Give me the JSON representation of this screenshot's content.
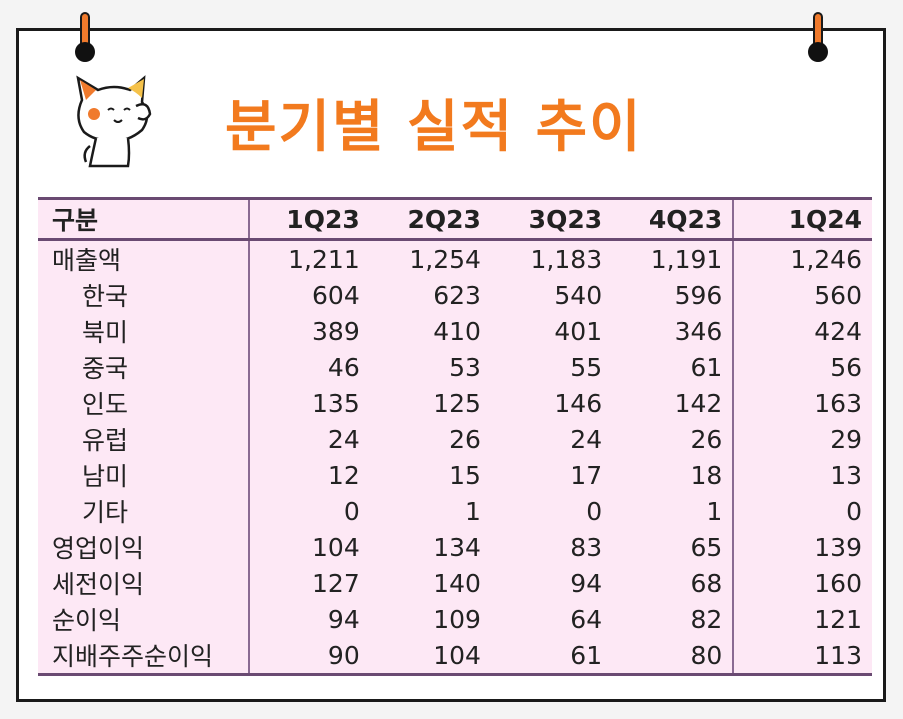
{
  "title": "분기별 실적 추이",
  "table": {
    "header": [
      "구분",
      "1Q23",
      "2Q23",
      "3Q23",
      "4Q23",
      "1Q24"
    ],
    "rows": [
      {
        "label": "매출액",
        "sub": false,
        "values": [
          "1,211",
          "1,254",
          "1,183",
          "1,191",
          "1,246"
        ]
      },
      {
        "label": "한국",
        "sub": true,
        "values": [
          "604",
          "623",
          "540",
          "596",
          "560"
        ]
      },
      {
        "label": "북미",
        "sub": true,
        "values": [
          "389",
          "410",
          "401",
          "346",
          "424"
        ]
      },
      {
        "label": "중국",
        "sub": true,
        "values": [
          "46",
          "53",
          "55",
          "61",
          "56"
        ]
      },
      {
        "label": "인도",
        "sub": true,
        "values": [
          "135",
          "125",
          "146",
          "142",
          "163"
        ]
      },
      {
        "label": "유럽",
        "sub": true,
        "values": [
          "24",
          "26",
          "24",
          "26",
          "29"
        ]
      },
      {
        "label": "남미",
        "sub": true,
        "values": [
          "12",
          "15",
          "17",
          "18",
          "13"
        ]
      },
      {
        "label": "기타",
        "sub": true,
        "values": [
          "0",
          "1",
          "0",
          "1",
          "0"
        ]
      },
      {
        "label": "영업이익",
        "sub": false,
        "values": [
          "104",
          "134",
          "83",
          "65",
          "139"
        ]
      },
      {
        "label": "세전이익",
        "sub": false,
        "values": [
          "127",
          "140",
          "94",
          "68",
          "160"
        ]
      },
      {
        "label": "순이익",
        "sub": false,
        "values": [
          "94",
          "109",
          "64",
          "82",
          "121"
        ]
      },
      {
        "label": "지배주주순이익",
        "sub": false,
        "values": [
          "90",
          "104",
          "61",
          "80",
          "113"
        ]
      }
    ]
  },
  "colors": {
    "title": "#f27a1e",
    "table_bg": "#fde8f5",
    "rule": "#6a4a72",
    "pin": "#f07a2c"
  },
  "icons": [
    "pin-icon",
    "cat-mascot-icon"
  ]
}
